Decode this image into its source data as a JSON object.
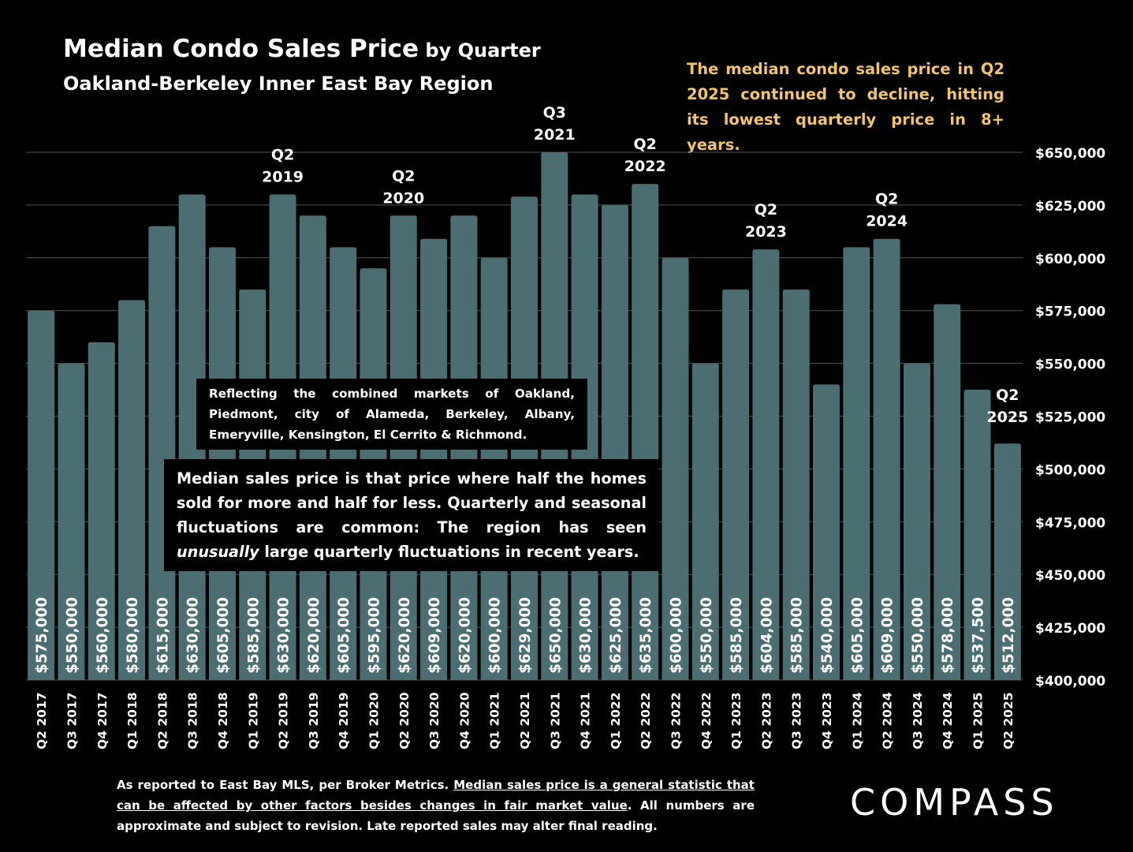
{
  "title": {
    "main": "Median Condo Sales Price",
    "suffix": " by Quarter"
  },
  "subtitle": "Oakland-Berkeley Inner East Bay Region",
  "headline": "The median condo sales price in Q2 2025 continued to decline, hitting its lowest quarterly price in 8+ years.",
  "box1": "Reflecting the combined markets of Oakland, Piedmont, city of Alameda, Berkeley, Albany, Emeryville, Kensington, El Cerrito & Richmond.",
  "box2": {
    "lead": "Median sales price is that price where half the homes sold for more and half for less. Quarterly and seasonal fluctuations are common: The region has seen ",
    "emph": "unusually",
    "tail": " large quarterly fluctuations in recent years."
  },
  "footnote": {
    "part1": "As reported to East Bay MLS, per Broker Metrics. ",
    "underlined": "Median sales price is a general statistic that can be affected by other factors besides changes in fair market value",
    "part2": ". All numbers are approximate and subject to revision. Late reported sales may alter final reading."
  },
  "logo": "COMPASS",
  "colors": {
    "bar": "#4a6e72",
    "grid": "#555555",
    "headline": "#f3c46a",
    "background": "#000000"
  },
  "chart_data": {
    "type": "bar",
    "categories": [
      "Q2 2017",
      "Q3 2017",
      "Q4 2017",
      "Q1 2018",
      "Q2 2018",
      "Q3 2018",
      "Q4 2018",
      "Q1 2019",
      "Q2 2019",
      "Q3 2019",
      "Q4 2019",
      "Q1 2020",
      "Q2 2020",
      "Q3 2020",
      "Q4 2020",
      "Q1 2021",
      "Q2 2021",
      "Q3 2021",
      "Q4 2021",
      "Q1 2022",
      "Q2 2022",
      "Q3 2022",
      "Q4 2022",
      "Q1 2023",
      "Q2 2023",
      "Q3 2023",
      "Q4 2023",
      "Q1 2024",
      "Q2 2024",
      "Q3 2024",
      "Q4 2024",
      "Q1 2025",
      "Q2 2025"
    ],
    "values": [
      575000,
      550000,
      560000,
      580000,
      615000,
      630000,
      605000,
      585000,
      630000,
      620000,
      605000,
      595000,
      620000,
      609000,
      620000,
      600000,
      629000,
      650000,
      630000,
      625000,
      635000,
      600000,
      550000,
      585000,
      604000,
      585000,
      540000,
      605000,
      609000,
      550000,
      578000,
      537500,
      512000
    ],
    "value_labels": [
      "$575,000",
      "$550,000",
      "$560,000",
      "$580,000",
      "$615,000",
      "$630,000",
      "$605,000",
      "$585,000",
      "$630,000",
      "$620,000",
      "$605,000",
      "$595,000",
      "$620,000",
      "$609,000",
      "$620,000",
      "$600,000",
      "$629,000",
      "$650,000",
      "$630,000",
      "$625,000",
      "$635,000",
      "$600,000",
      "$550,000",
      "$585,000",
      "$604,000",
      "$585,000",
      "$540,000",
      "$605,000",
      "$609,000",
      "$550,000",
      "$578,000",
      "$537,500",
      "$512,000"
    ],
    "ylim": [
      400000,
      650000
    ],
    "yticks": [
      400000,
      425000,
      450000,
      475000,
      500000,
      525000,
      550000,
      575000,
      600000,
      625000,
      650000
    ],
    "ytick_labels": [
      "$400,000",
      "$425,000",
      "$450,000",
      "$475,000",
      "$500,000",
      "$525,000",
      "$550,000",
      "$575,000",
      "$600,000",
      "$625,000",
      "$650,000"
    ],
    "y_axis_side": "right",
    "grid": true,
    "annotations": [
      {
        "category": "Q2 2019",
        "text": [
          "Q2",
          "2019"
        ]
      },
      {
        "category": "Q2 2020",
        "text": [
          "Q2",
          "2020"
        ]
      },
      {
        "category": "Q3 2021",
        "text": [
          "Q3",
          "2021"
        ]
      },
      {
        "category": "Q2 2022",
        "text": [
          "Q2",
          "2022"
        ]
      },
      {
        "category": "Q2 2023",
        "text": [
          "Q2",
          "2023"
        ]
      },
      {
        "category": "Q2 2024",
        "text": [
          "Q2",
          "2024"
        ]
      },
      {
        "category": "Q2 2025",
        "text": [
          "Q2",
          "2025"
        ]
      }
    ]
  }
}
